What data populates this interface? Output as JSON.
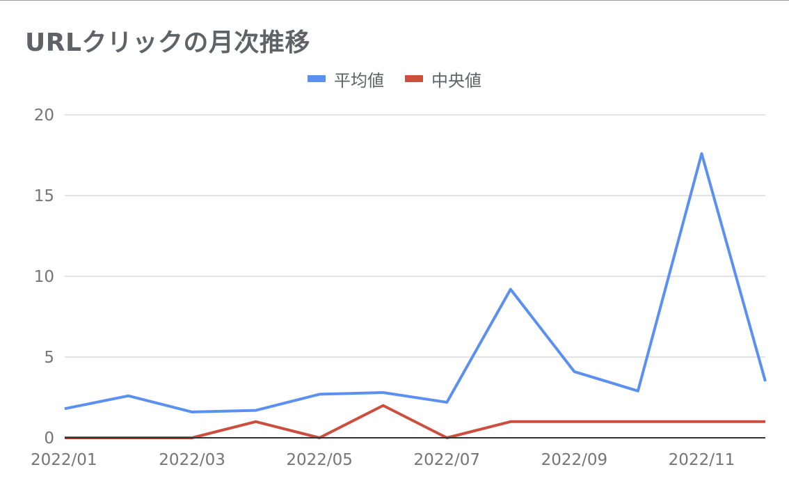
{
  "chart_data": {
    "type": "line",
    "title": "URLクリックの月次推移",
    "xlabel": "",
    "ylabel": "",
    "x": [
      "2022/01",
      "2022/02",
      "2022/03",
      "2022/04",
      "2022/05",
      "2022/06",
      "2022/07",
      "2022/08",
      "2022/09",
      "2022/10",
      "2022/11",
      "2022/12"
    ],
    "x_tick_labels": [
      "2022/01",
      "2022/03",
      "2022/05",
      "2022/07",
      "2022/09",
      "2022/11"
    ],
    "ylim": [
      0,
      20
    ],
    "y_ticks": [
      "0",
      "5",
      "10",
      "15",
      "20"
    ],
    "grid": true,
    "legend_position": "top-center",
    "series": [
      {
        "name": "平均値",
        "color": "#5b8ff0",
        "values": [
          1.8,
          2.6,
          1.6,
          1.7,
          2.7,
          2.8,
          2.2,
          9.2,
          4.1,
          2.9,
          17.6,
          3.5
        ]
      },
      {
        "name": "中央値",
        "color": "#cc4e3f",
        "values": [
          0,
          0,
          0,
          1,
          0,
          2,
          0,
          1,
          1,
          1,
          1,
          1
        ]
      }
    ]
  }
}
